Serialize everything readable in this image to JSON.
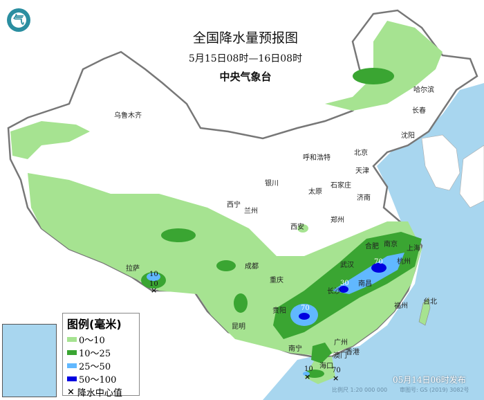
{
  "header": {
    "title": "全国降水量预报图",
    "period": "5月15日08时—16日08时",
    "issuer": "中央气象台"
  },
  "colors": {
    "ocean": "#a8d6ef",
    "land": "#ffffff",
    "level_0_10": "#a6e391",
    "level_10_25": "#3aa532",
    "level_25_50": "#61b8ff",
    "level_50_100": "#0000e0"
  },
  "legend": {
    "title": "图例(毫米)",
    "items": [
      {
        "label": "0～10",
        "color": "#a6e391"
      },
      {
        "label": "10～25",
        "color": "#3aa532"
      },
      {
        "label": "25～50",
        "color": "#61b8ff"
      },
      {
        "label": "50～100",
        "color": "#0000e0"
      }
    ],
    "center_label": "降水中心值",
    "center_symbol": "×"
  },
  "cities": [
    "乌鲁木齐",
    "哈尔滨",
    "长春",
    "沈阳",
    "北京",
    "天津",
    "呼和浩特",
    "石家庄",
    "太原",
    "济南",
    "银川",
    "西宁",
    "兰州",
    "西安",
    "郑州",
    "合肥",
    "南京",
    "上海",
    "武汉",
    "杭州",
    "成都",
    "重庆",
    "长沙",
    "南昌",
    "拉萨",
    "贵阳",
    "福州",
    "台北",
    "昆明",
    "南宁",
    "广州",
    "香港",
    "澳门",
    "海口"
  ],
  "rain_centers": [
    "10",
    "10",
    "70",
    "30",
    "70",
    "10",
    "70"
  ],
  "footer": {
    "issued": "05月14日06时发布",
    "scale": "比例尺 1:20 000 000",
    "approval": "审图号: GS (2019) 3082号"
  },
  "logo_icon": "cma-logo-icon"
}
